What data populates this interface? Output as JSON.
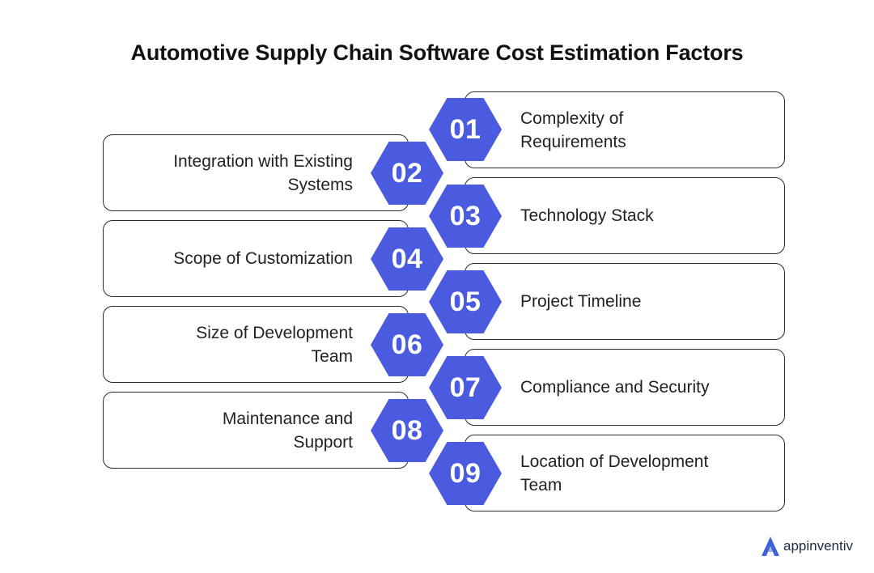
{
  "title": "Automotive Supply Chain Software Cost Estimation Factors",
  "accent_color": "#4a5be0",
  "factors": [
    {
      "number": "01",
      "lines": [
        "Complexity of",
        "Requirements"
      ]
    },
    {
      "number": "02",
      "lines": [
        "Integration with Existing",
        "Systems"
      ]
    },
    {
      "number": "03",
      "lines": [
        "Technology Stack"
      ]
    },
    {
      "number": "04",
      "lines": [
        "Scope of Customization"
      ]
    },
    {
      "number": "05",
      "lines": [
        "Project Timeline"
      ]
    },
    {
      "number": "06",
      "lines": [
        "Size of Development",
        "Team"
      ]
    },
    {
      "number": "07",
      "lines": [
        "Compliance and Security"
      ]
    },
    {
      "number": "08",
      "lines": [
        "Maintenance and",
        "Support"
      ]
    },
    {
      "number": "09",
      "lines": [
        "Location of Development",
        "Team"
      ]
    }
  ],
  "logo": {
    "text": "appinventiv",
    "icon": "appinventiv-logo-icon"
  }
}
